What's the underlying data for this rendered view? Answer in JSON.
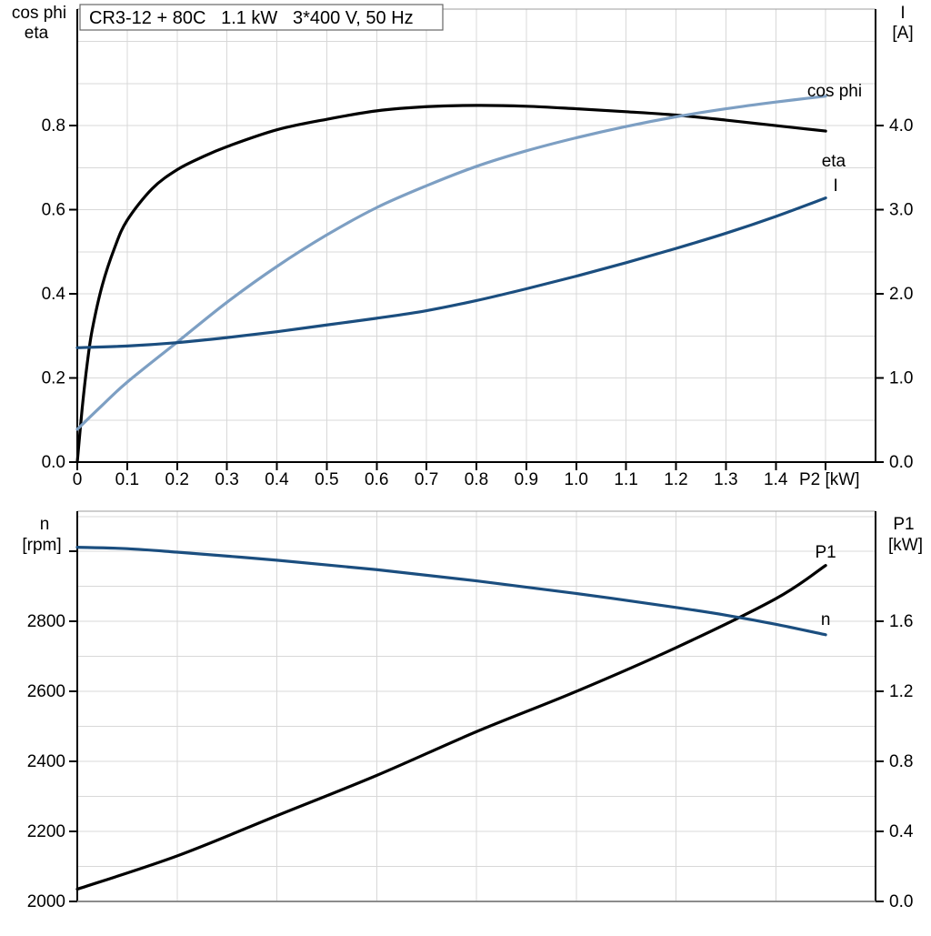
{
  "page": {
    "background": "#ffffff"
  },
  "colors": {
    "black": "#000000",
    "light_blue": "#7d9fc3",
    "dark_blue": "#1b4e7f",
    "grid": "#d8d8d8",
    "frame_gray": "#9e9e9e",
    "bottom_frame_gray": "#8c8c8c",
    "title_box_border": "#666666"
  },
  "chart_data": [
    {
      "id": "motor-efficiency-current",
      "type": "line",
      "title": "CR3-12 + 80C   1.1 kW   3*400 V, 50 Hz",
      "x_axis": {
        "title": "P2 [kW]",
        "min": 0,
        "max": 1.6,
        "grid_step": 0.1,
        "show_ticks": true,
        "tick_values": [
          0,
          0.1,
          0.2,
          0.3,
          0.4,
          0.5,
          0.6,
          0.7,
          0.8,
          0.9,
          1.0,
          1.1,
          1.2,
          1.3,
          1.4
        ],
        "tick_labels": [
          "0",
          "0.1",
          "0.2",
          "0.3",
          "0.4",
          "0.5",
          "0.6",
          "0.7",
          "0.8",
          "0.9",
          "1.0",
          "1.1",
          "1.2",
          "1.3",
          "1.4"
        ],
        "extra_tick_values": [
          1.5
        ]
      },
      "y_axis_left": {
        "title_lines": [
          "cos phi",
          "eta"
        ],
        "min": 0,
        "max": 1.077,
        "grid_step": 0.1,
        "tick_values": [
          0,
          0.2,
          0.4,
          0.6,
          0.8
        ],
        "tick_labels": [
          "0.0",
          "0.2",
          "0.4",
          "0.6",
          "0.8"
        ],
        "extra_tick_values": []
      },
      "y_axis_right": {
        "title_lines": [
          "I",
          "[A]"
        ],
        "min": 0,
        "max": 5.385,
        "tick_values": [
          0,
          1,
          2,
          3,
          4
        ],
        "tick_labels": [
          "0.0",
          "1.0",
          "2.0",
          "3.0",
          "4.0"
        ],
        "extra_tick_values": []
      },
      "series": [
        {
          "name": "eta",
          "label": "eta",
          "axis": "left",
          "color_key": "black",
          "label_at": [
            1.516,
            0.718
          ],
          "x": [
            0,
            0.01,
            0.02,
            0.03,
            0.05,
            0.075,
            0.1,
            0.15,
            0.2,
            0.25,
            0.3,
            0.4,
            0.5,
            0.6,
            0.7,
            0.8,
            0.9,
            1.0,
            1.1,
            1.2,
            1.3,
            1.4,
            1.5
          ],
          "y": [
            0,
            0.13,
            0.235,
            0.315,
            0.42,
            0.51,
            0.575,
            0.65,
            0.695,
            0.725,
            0.75,
            0.79,
            0.815,
            0.835,
            0.845,
            0.848,
            0.846,
            0.84,
            0.833,
            0.825,
            0.813,
            0.8,
            0.787
          ]
        },
        {
          "name": "cos_phi",
          "label": "cos phi",
          "axis": "left",
          "color_key": "light_blue",
          "label_at": [
            1.518,
            0.885
          ],
          "x": [
            0,
            0.05,
            0.1,
            0.2,
            0.3,
            0.4,
            0.5,
            0.6,
            0.7,
            0.8,
            0.9,
            1.0,
            1.1,
            1.2,
            1.3,
            1.4,
            1.5
          ],
          "y": [
            0.078,
            0.135,
            0.19,
            0.285,
            0.38,
            0.465,
            0.54,
            0.605,
            0.657,
            0.703,
            0.74,
            0.771,
            0.798,
            0.821,
            0.84,
            0.856,
            0.87
          ]
        },
        {
          "name": "I",
          "label": "I",
          "axis": "right",
          "color_key": "dark_blue",
          "label_at": [
            1.52,
            3.3
          ],
          "x": [
            0,
            0.1,
            0.2,
            0.3,
            0.4,
            0.5,
            0.6,
            0.7,
            0.8,
            0.9,
            1.0,
            1.1,
            1.2,
            1.3,
            1.4,
            1.5
          ],
          "y": [
            1.36,
            1.38,
            1.42,
            1.48,
            1.55,
            1.63,
            1.71,
            1.8,
            1.92,
            2.06,
            2.21,
            2.37,
            2.54,
            2.72,
            2.92,
            3.14
          ]
        }
      ]
    },
    {
      "id": "motor-speed-input-power",
      "type": "line",
      "title": "",
      "x_axis": {
        "title": "",
        "min": 0,
        "max": 1.6,
        "grid_step": 0.2,
        "show_ticks": false,
        "tick_values": [],
        "tick_labels": [],
        "extra_tick_values": []
      },
      "y_axis_left": {
        "title_lines": [
          "n",
          "[rpm]"
        ],
        "min": 2000,
        "max": 3115,
        "grid_step": 100,
        "tick_values": [
          2000,
          2200,
          2400,
          2600,
          2800
        ],
        "tick_labels": [
          "2000",
          "2200",
          "2400",
          "2600",
          "2800"
        ],
        "extra_tick_values": [
          3000
        ]
      },
      "y_axis_right": {
        "title_lines": [
          "P1",
          "[kW]"
        ],
        "min": 0,
        "max": 2.23,
        "tick_values": [
          0,
          0.4,
          0.8,
          1.2,
          1.6
        ],
        "tick_labels": [
          "0.0",
          "0.4",
          "0.8",
          "1.2",
          "1.6"
        ],
        "extra_tick_values": []
      },
      "series": [
        {
          "name": "P1",
          "label": "P1",
          "axis": "right",
          "color_key": "black",
          "label_at": [
            1.5,
            2.0
          ],
          "x": [
            0,
            0.2,
            0.4,
            0.6,
            0.8,
            1.0,
            1.2,
            1.4,
            1.5
          ],
          "y": [
            0.07,
            0.26,
            0.49,
            0.72,
            0.97,
            1.2,
            1.45,
            1.73,
            1.92
          ]
        },
        {
          "name": "n",
          "label": "n",
          "axis": "left",
          "color_key": "dark_blue",
          "label_at": [
            1.5,
            2808
          ],
          "x": [
            0,
            0.1,
            0.2,
            0.4,
            0.6,
            0.8,
            1.0,
            1.2,
            1.3,
            1.4,
            1.5
          ],
          "y": [
            3012,
            3008,
            2998,
            2975,
            2948,
            2916,
            2880,
            2840,
            2818,
            2792,
            2762
          ]
        }
      ]
    }
  ]
}
